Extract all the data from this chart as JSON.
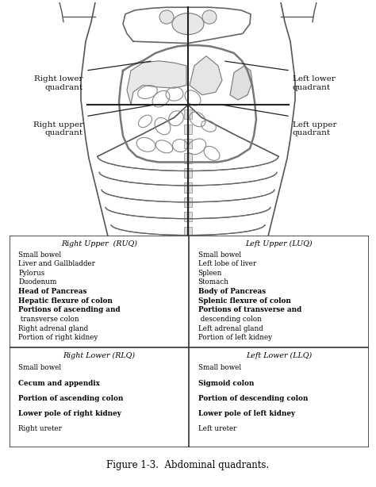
{
  "title": "Figure 1-3.  Abdominal quadrants.",
  "title_fontsize": 8.5,
  "bg_color": "#ffffff",
  "table": {
    "ruq_title": "Right Upper  (RUQ)",
    "luq_title": "Left Upper (LUQ)",
    "rlq_title": "Right Lower (RLQ)",
    "llq_title": "Left Lower (LLQ)",
    "ruq_items": [
      "Small bowel",
      "Liver and Gallbladder",
      "Pylorus",
      "Duodenum",
      "Head of Pancreas",
      "Hepatic flexure of colon",
      "Portions of ascending and",
      " transverse colon",
      "Right adrenal gland",
      "Portion of right kidney"
    ],
    "luq_items": [
      "Small bowel",
      "Left lobe of liver",
      "Spleen",
      "Stomach",
      "Body of Pancreas",
      "Splenic flexure of colon",
      "Portions of transverse and",
      " descending colon",
      "Left adrenal gland",
      "Portion of left kidney"
    ],
    "rlq_items": [
      "Small bowel",
      "Cecum and appendix",
      "Portion of ascending colon",
      "Lower pole of right kidney",
      "Right ureter"
    ],
    "llq_items": [
      "Small bowel",
      "Sigmoid colon",
      "Portion of descending colon",
      "Lower pole of left kidney",
      "Left ureter"
    ]
  },
  "bold_items_ruq": [
    "Head of Pancreas",
    "Hepatic flexure of colon",
    "Portions of ascending and"
  ],
  "bold_items_luq": [
    "Body of Pancreas",
    "Splenic flexure of colon",
    "Portions of transverse and"
  ],
  "bold_items_rlq": [
    "Cecum and appendix",
    "Portion of ascending colon",
    "Lower pole of right kidney"
  ],
  "bold_items_llq": [
    "Sigmoid colon",
    "Portion of descending colon",
    "Lower pole of left kidney"
  ]
}
